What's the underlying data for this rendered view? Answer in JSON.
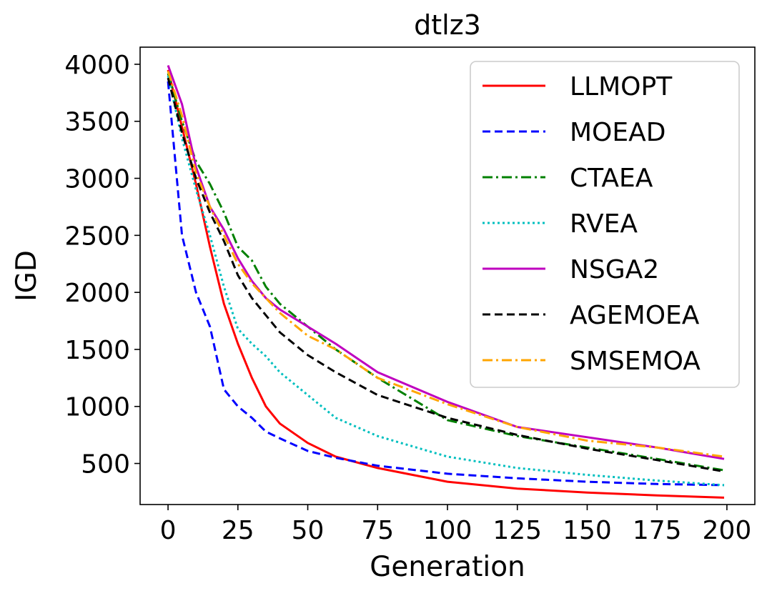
{
  "chart_data": {
    "type": "line",
    "title": "dtlz3",
    "xlabel": "Generation",
    "ylabel": "IGD",
    "xlim": [
      -10,
      210
    ],
    "ylim": [
      140,
      4150
    ],
    "xticks": [
      0,
      25,
      50,
      75,
      100,
      125,
      150,
      175,
      200
    ],
    "yticks": [
      500,
      1000,
      1500,
      2000,
      2500,
      3000,
      3500,
      4000
    ],
    "xtick_labels": [
      "0",
      "25",
      "50",
      "75",
      "100",
      "125",
      "150",
      "175",
      "200"
    ],
    "ytick_labels": [
      "500",
      "1000",
      "1500",
      "2000",
      "2500",
      "3000",
      "3500",
      "4000"
    ],
    "grid": false,
    "legend_position": "top-right",
    "x": [
      0,
      5,
      10,
      15,
      20,
      25,
      30,
      35,
      40,
      50,
      60,
      75,
      100,
      125,
      150,
      175,
      199
    ],
    "series": [
      {
        "name": "LLMOPT",
        "color": "#ff0000",
        "dash": "solid",
        "values": [
          3950,
          3450,
          2950,
          2400,
          1900,
          1550,
          1250,
          1000,
          850,
          680,
          560,
          460,
          340,
          280,
          245,
          220,
          200
        ]
      },
      {
        "name": "MOEAD",
        "color": "#0000ff",
        "dash": "dashed",
        "values": [
          3850,
          2500,
          2000,
          1700,
          1150,
          1000,
          900,
          780,
          720,
          610,
          550,
          480,
          410,
          370,
          340,
          320,
          310
        ]
      },
      {
        "name": "CTAEA",
        "color": "#008000",
        "dash": "dashdot",
        "values": [
          3920,
          3500,
          3150,
          2950,
          2700,
          2400,
          2280,
          2050,
          1900,
          1700,
          1500,
          1250,
          880,
          740,
          640,
          540,
          440
        ]
      },
      {
        "name": "RVEA",
        "color": "#00bfbf",
        "dash": "dotted",
        "values": [
          3900,
          3350,
          2900,
          2500,
          2050,
          1680,
          1550,
          1440,
          1300,
          1100,
          900,
          740,
          560,
          460,
          400,
          350,
          310
        ]
      },
      {
        "name": "NSGA2",
        "color": "#bf00bf",
        "dash": "solid",
        "values": [
          3990,
          3650,
          3100,
          2750,
          2550,
          2300,
          2100,
          1950,
          1850,
          1700,
          1550,
          1300,
          1040,
          820,
          730,
          640,
          540
        ]
      },
      {
        "name": "AGEMOEA",
        "color": "#000000",
        "dash": "dashed",
        "values": [
          3880,
          3400,
          3000,
          2700,
          2450,
          2150,
          1950,
          1800,
          1650,
          1450,
          1300,
          1100,
          900,
          750,
          630,
          530,
          430
        ]
      },
      {
        "name": "SMSEMOA",
        "color": "#ffa500",
        "dash": "dashdot",
        "values": [
          3940,
          3550,
          3050,
          2750,
          2500,
          2250,
          2080,
          1950,
          1820,
          1620,
          1500,
          1250,
          1020,
          820,
          700,
          640,
          560
        ]
      }
    ]
  }
}
